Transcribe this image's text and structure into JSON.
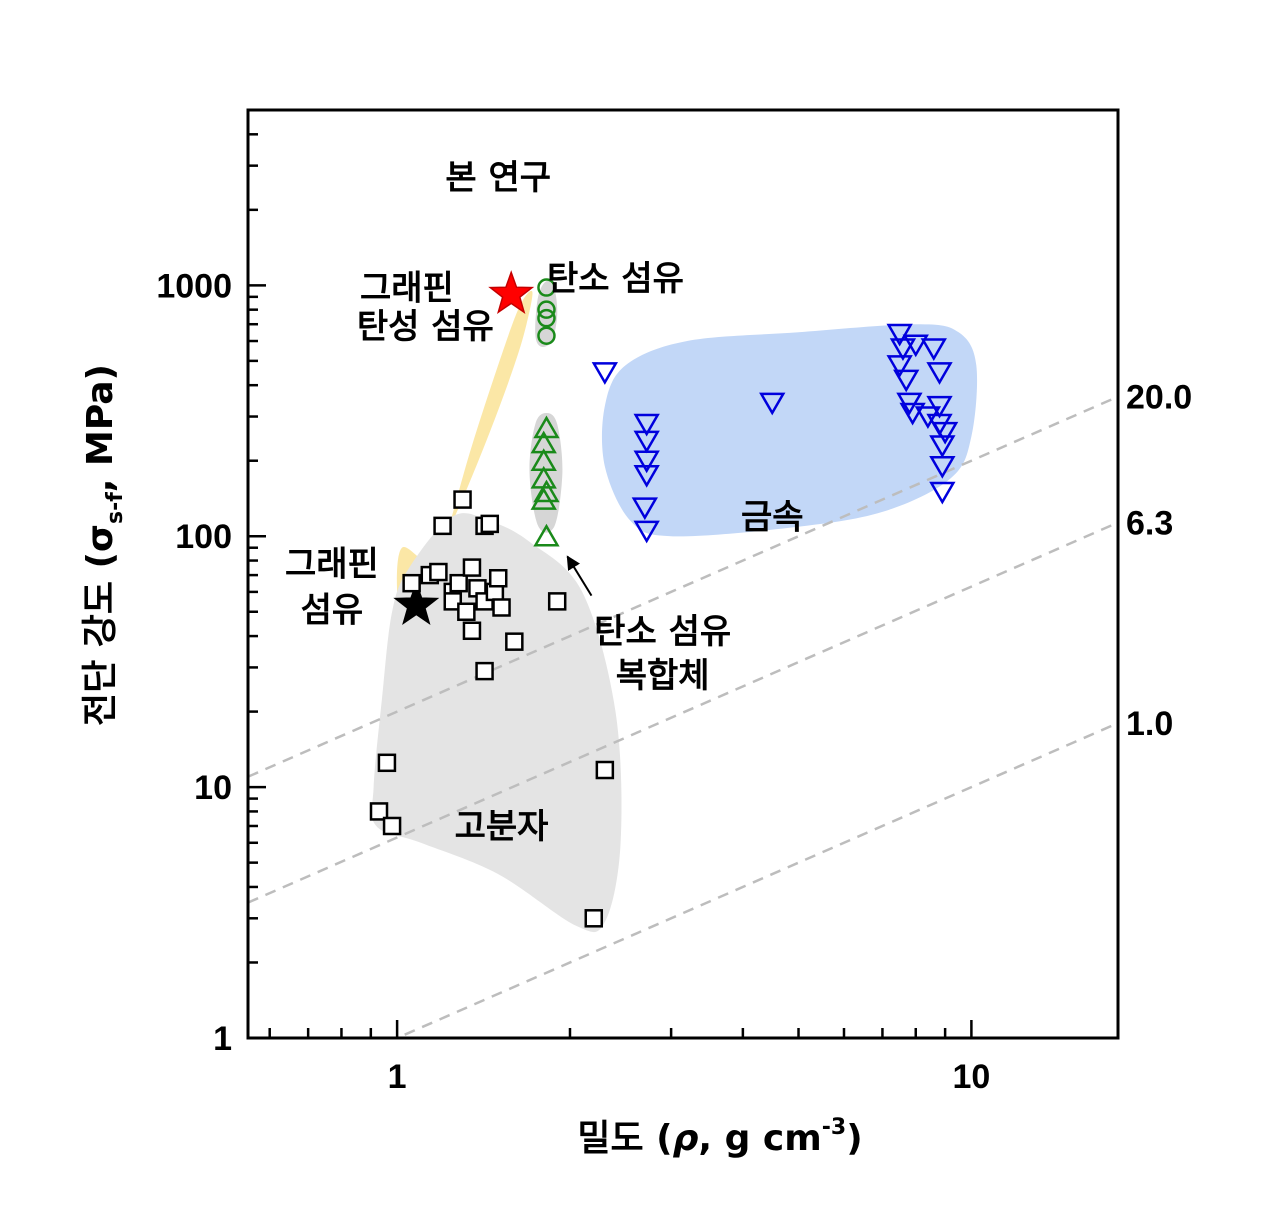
{
  "chart_data": {
    "type": "scatter",
    "x_scale": "log",
    "y_scale": "log",
    "xlim": [
      0.55,
      18
    ],
    "ylim": [
      1,
      5000
    ],
    "xlabel": {
      "prefix": "밀도  (",
      "sym": "ρ",
      "mid": ", g cm",
      "sup": "-3",
      "suffix": ")"
    },
    "ylabel": {
      "prefix": "전단 강도  (",
      "sym": "σ",
      "sub": "s-f",
      "suffix": ", MPa)"
    },
    "x_ticks": [
      {
        "value": 1,
        "label": "1"
      },
      {
        "value": 10,
        "label": "10"
      }
    ],
    "y_ticks": [
      {
        "value": 1,
        "label": "1"
      },
      {
        "value": 10,
        "label": "10"
      },
      {
        "value": 100,
        "label": "100"
      },
      {
        "value": 1000,
        "label": "1000"
      }
    ],
    "guide_lines": [
      {
        "specific_strength": 20.0,
        "label": "20.0"
      },
      {
        "specific_strength": 6.3,
        "label": "6.3"
      },
      {
        "specific_strength": 1.0,
        "label": "1.0"
      }
    ],
    "regions": [
      {
        "name": "graphene-elastic-fiber",
        "color": "#fbe7a6",
        "points": [
          [
            1.02,
            90
          ],
          [
            1.0,
            60
          ],
          [
            1.03,
            52
          ],
          [
            1.1,
            55
          ],
          [
            1.2,
            90
          ],
          [
            1.35,
            230
          ],
          [
            1.55,
            600
          ],
          [
            1.65,
            860
          ],
          [
            1.72,
            940
          ],
          [
            1.68,
            700
          ],
          [
            1.6,
            480
          ],
          [
            1.45,
            260
          ],
          [
            1.28,
            130
          ],
          [
            1.15,
            80
          ]
        ]
      },
      {
        "name": "polymer",
        "color": "#e4e4e4",
        "points": [
          [
            1.05,
            75
          ],
          [
            1.25,
            120
          ],
          [
            1.45,
            115
          ],
          [
            1.7,
            95
          ],
          [
            2.1,
            60
          ],
          [
            2.4,
            20
          ],
          [
            2.45,
            6
          ],
          [
            2.3,
            2.9
          ],
          [
            2.05,
            2.8
          ],
          [
            1.5,
            4.5
          ],
          [
            1.1,
            6
          ],
          [
            0.92,
            7
          ],
          [
            0.91,
            10
          ],
          [
            0.94,
            22
          ],
          [
            0.98,
            50
          ]
        ]
      },
      {
        "name": "carbon-fiber",
        "color": "#d6d6d6",
        "points": [
          [
            1.74,
            640
          ],
          [
            1.76,
            900
          ],
          [
            1.82,
            1040
          ],
          [
            1.88,
            960
          ],
          [
            1.9,
            760
          ],
          [
            1.86,
            600
          ],
          [
            1.78,
            570
          ]
        ]
      },
      {
        "name": "carbon-composite",
        "color": "#d6d6d6",
        "points": [
          [
            1.74,
            280
          ],
          [
            1.7,
            180
          ],
          [
            1.76,
            110
          ],
          [
            1.88,
            110
          ],
          [
            1.94,
            180
          ],
          [
            1.9,
            280
          ],
          [
            1.82,
            310
          ]
        ]
      },
      {
        "name": "metal",
        "color": "#c2d7f7",
        "points": [
          [
            2.5,
            480
          ],
          [
            3.2,
            600
          ],
          [
            5,
            650
          ],
          [
            8,
            700
          ],
          [
            9.5,
            650
          ],
          [
            10.2,
            480
          ],
          [
            10.0,
            250
          ],
          [
            9.2,
            170
          ],
          [
            7,
            125
          ],
          [
            4.8,
            108
          ],
          [
            3.0,
            100
          ],
          [
            2.55,
            115
          ],
          [
            2.3,
            190
          ],
          [
            2.3,
            330
          ]
        ]
      }
    ],
    "series": [
      {
        "name": "본 연구",
        "marker": "star",
        "color": "#ff0000",
        "stroke": "#c40000",
        "points": [
          [
            1.58,
            920
          ]
        ]
      },
      {
        "marker": "star",
        "color": "#000000",
        "stroke": "#000000",
        "points": [
          [
            1.08,
            53
          ]
        ]
      },
      {
        "marker": "circle",
        "color": "none",
        "stroke": "#1a8a1a",
        "points": [
          [
            1.82,
            980
          ],
          [
            1.82,
            800
          ],
          [
            1.82,
            740
          ],
          [
            1.82,
            630
          ]
        ]
      },
      {
        "marker": "triangle-up",
        "color": "none",
        "stroke": "#1a8a1a",
        "points": [
          [
            1.82,
            270
          ],
          [
            1.8,
            235
          ],
          [
            1.8,
            200
          ],
          [
            1.8,
            170
          ],
          [
            1.82,
            150
          ],
          [
            1.8,
            140
          ],
          [
            1.82,
            100
          ]
        ]
      },
      {
        "marker": "square",
        "color": "#ffffff",
        "stroke": "#000000",
        "points": [
          [
            1.06,
            65
          ],
          [
            1.14,
            70
          ],
          [
            1.18,
            72
          ],
          [
            1.2,
            110
          ],
          [
            1.25,
            60
          ],
          [
            1.25,
            55
          ],
          [
            1.28,
            65
          ],
          [
            1.3,
            140
          ],
          [
            1.32,
            50
          ],
          [
            1.35,
            75
          ],
          [
            1.35,
            42
          ],
          [
            1.38,
            62
          ],
          [
            1.42,
            110
          ],
          [
            1.42,
            55
          ],
          [
            1.45,
            112
          ],
          [
            1.48,
            60
          ],
          [
            1.5,
            68
          ],
          [
            1.52,
            52
          ],
          [
            1.42,
            29
          ],
          [
            1.6,
            38
          ],
          [
            1.9,
            55
          ],
          [
            0.96,
            12.5
          ],
          [
            0.93,
            8
          ],
          [
            0.98,
            7
          ],
          [
            2.3,
            11.7
          ],
          [
            2.2,
            3
          ]
        ]
      },
      {
        "marker": "triangle-down",
        "color": "none",
        "stroke": "#0000dd",
        "points": [
          [
            2.3,
            450
          ],
          [
            2.72,
            280
          ],
          [
            2.72,
            240
          ],
          [
            2.72,
            200
          ],
          [
            2.72,
            175
          ],
          [
            2.7,
            130
          ],
          [
            2.72,
            105
          ],
          [
            4.5,
            340
          ],
          [
            7.5,
            640
          ],
          [
            7.6,
            560
          ],
          [
            7.5,
            480
          ],
          [
            7.7,
            420
          ],
          [
            8.0,
            580
          ],
          [
            8.6,
            560
          ],
          [
            8.8,
            450
          ],
          [
            7.8,
            340
          ],
          [
            7.9,
            310
          ],
          [
            8.4,
            300
          ],
          [
            8.8,
            330
          ],
          [
            8.8,
            280
          ],
          [
            9.0,
            260
          ],
          [
            8.9,
            230
          ],
          [
            8.9,
            190
          ],
          [
            8.9,
            150
          ]
        ]
      }
    ],
    "annotations": [
      {
        "text": "본 연구",
        "x": 1.5,
        "y": 2700
      },
      {
        "text": "그래핀",
        "x": 1.04,
        "y": 980
      },
      {
        "text": "탄성 섬유",
        "x": 1.12,
        "y": 690
      },
      {
        "text": "탄소 섬유",
        "x": 2.4,
        "y": 1070
      },
      {
        "text": "금속",
        "x": 4.5,
        "y": 120
      },
      {
        "text": "그래핀",
        "x": 0.77,
        "y": 78
      },
      {
        "text": "섬유",
        "x": 0.77,
        "y": 51
      },
      {
        "text": "탄소 섬유",
        "x": 2.9,
        "y": 42
      },
      {
        "text": "복합체",
        "x": 2.9,
        "y": 28
      },
      {
        "text": "고분자",
        "x": 1.52,
        "y": 7
      }
    ],
    "arrow": {
      "from": [
        2.18,
        58
      ],
      "to": [
        1.98,
        83
      ]
    },
    "grid": false,
    "legend": "none"
  }
}
